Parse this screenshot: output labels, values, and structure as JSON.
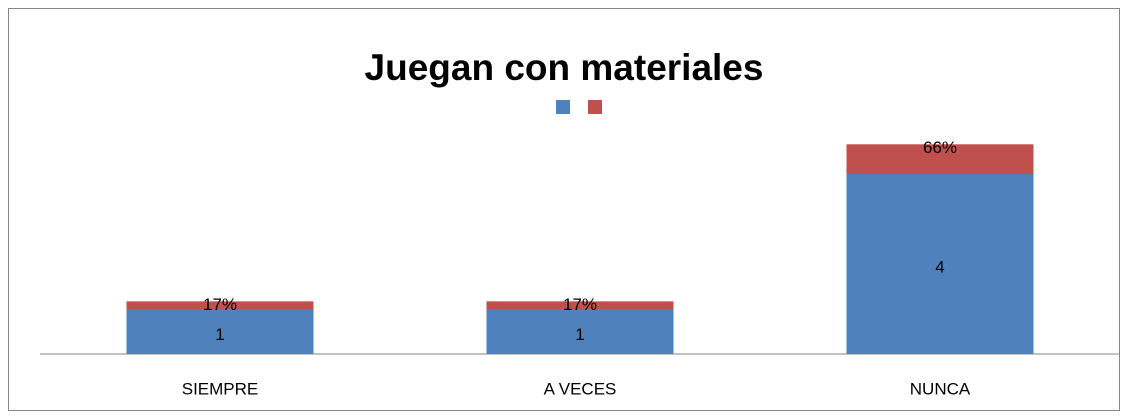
{
  "chart_data": {
    "type": "stacked_bar",
    "title": "Juegan con materiales",
    "categories": [
      "SIEMPRE",
      "A VECES",
      "NUNCA"
    ],
    "series": [
      {
        "color": "#4f81bd",
        "values": [
          1,
          1,
          4
        ]
      },
      {
        "color": "#c0504d",
        "values": [
          0.17,
          0.17,
          0.66
        ],
        "value_labels": [
          "17%",
          "17%",
          "66%"
        ]
      }
    ],
    "ylim": [
      0,
      5
    ]
  }
}
